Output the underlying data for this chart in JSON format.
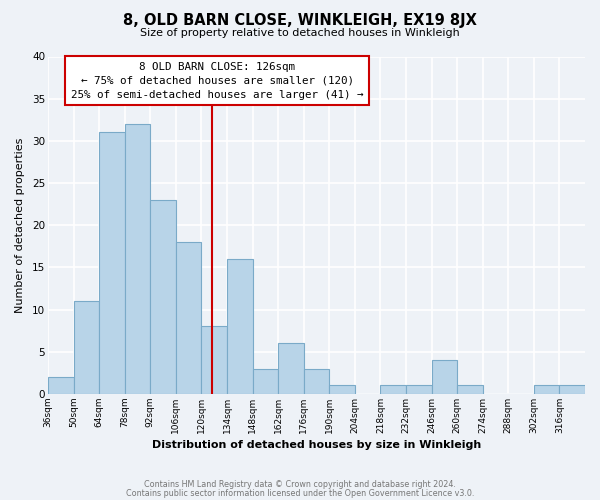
{
  "title": "8, OLD BARN CLOSE, WINKLEIGH, EX19 8JX",
  "subtitle": "Size of property relative to detached houses in Winkleigh",
  "xlabel": "Distribution of detached houses by size in Winkleigh",
  "ylabel": "Number of detached properties",
  "bar_color": "#b8d4e8",
  "bar_edge_color": "#7aaac8",
  "bin_edges": [
    36,
    50,
    64,
    78,
    92,
    106,
    120,
    134,
    148,
    162,
    176,
    190,
    204,
    218,
    232,
    246,
    260,
    274,
    288,
    302,
    316,
    330
  ],
  "counts": [
    2,
    11,
    31,
    32,
    23,
    18,
    8,
    16,
    3,
    6,
    3,
    1,
    0,
    1,
    1,
    4,
    1,
    0,
    0,
    1,
    1
  ],
  "tick_labels": [
    "36sqm",
    "50sqm",
    "64sqm",
    "78sqm",
    "92sqm",
    "106sqm",
    "120sqm",
    "134sqm",
    "148sqm",
    "162sqm",
    "176sqm",
    "190sqm",
    "204sqm",
    "218sqm",
    "232sqm",
    "246sqm",
    "260sqm",
    "274sqm",
    "288sqm",
    "302sqm",
    "316sqm"
  ],
  "property_line_x": 126,
  "ylim": [
    0,
    40
  ],
  "yticks": [
    0,
    5,
    10,
    15,
    20,
    25,
    30,
    35,
    40
  ],
  "annotation_line1": "8 OLD BARN CLOSE: 126sqm",
  "annotation_line2": "← 75% of detached houses are smaller (120)",
  "annotation_line3": "25% of semi-detached houses are larger (41) →",
  "footer1": "Contains HM Land Registry data © Crown copyright and database right 2024.",
  "footer2": "Contains public sector information licensed under the Open Government Licence v3.0.",
  "background_color": "#eef2f7",
  "grid_color": "#ffffff",
  "line_color": "#cc0000",
  "footer_color": "#777777"
}
